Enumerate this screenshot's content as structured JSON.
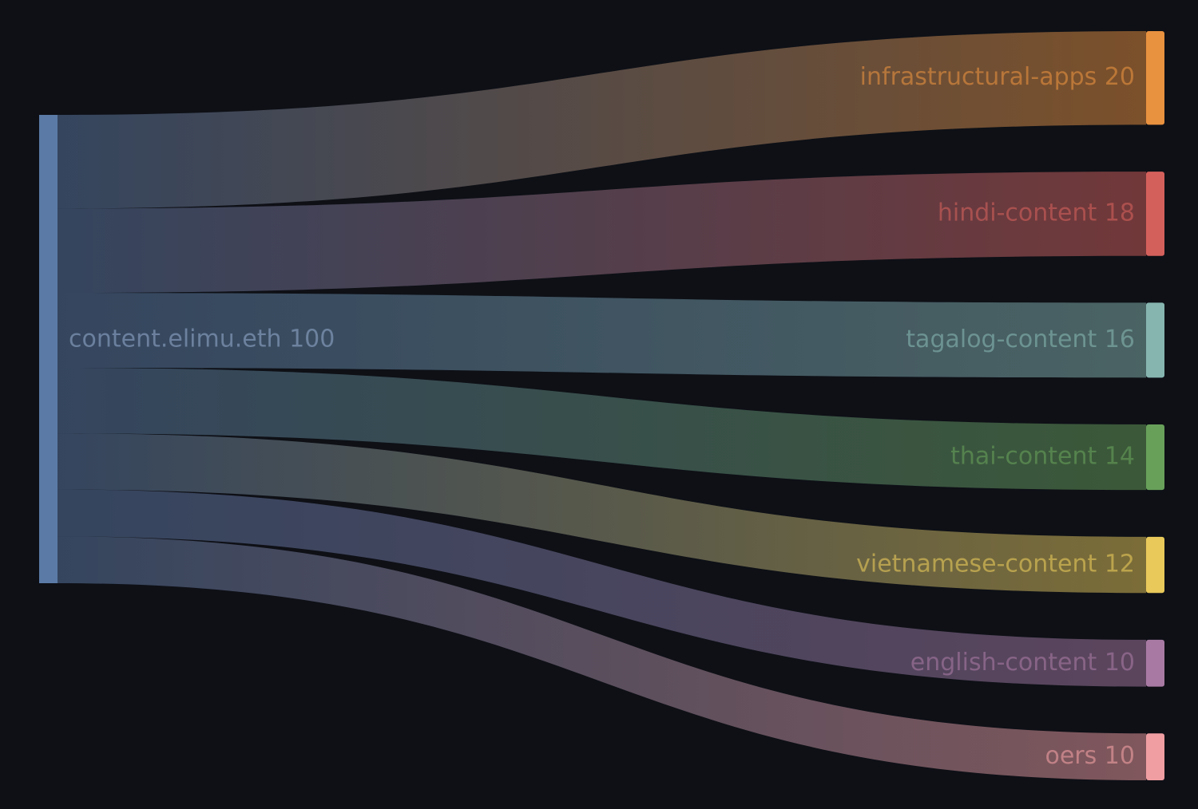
{
  "chart_data": {
    "type": "sankey",
    "source": {
      "name": "content.elimu.eth",
      "value": 100,
      "label": "content.elimu.eth 100",
      "color": "#5b7aa6"
    },
    "targets": [
      {
        "name": "infrastructural-apps",
        "value": 20,
        "label": "infrastructural-apps 20",
        "color": "#e8913f"
      },
      {
        "name": "hindi-content",
        "value": 18,
        "label": "hindi-content 18",
        "color": "#d4605c"
      },
      {
        "name": "tagalog-content",
        "value": 16,
        "label": "tagalog-content 16",
        "color": "#86b5b0"
      },
      {
        "name": "thai-content",
        "value": 14,
        "label": "thai-content 14",
        "color": "#68a05a"
      },
      {
        "name": "vietnamese-content",
        "value": 12,
        "label": "vietnamese-content 12",
        "color": "#e8c95a"
      },
      {
        "name": "english-content",
        "value": 10,
        "label": "english-content 10",
        "color": "#a87aa3"
      },
      {
        "name": "oers",
        "value": 10,
        "label": "oers 10",
        "color": "#f09ea2"
      }
    ],
    "background": "#0e1016"
  }
}
